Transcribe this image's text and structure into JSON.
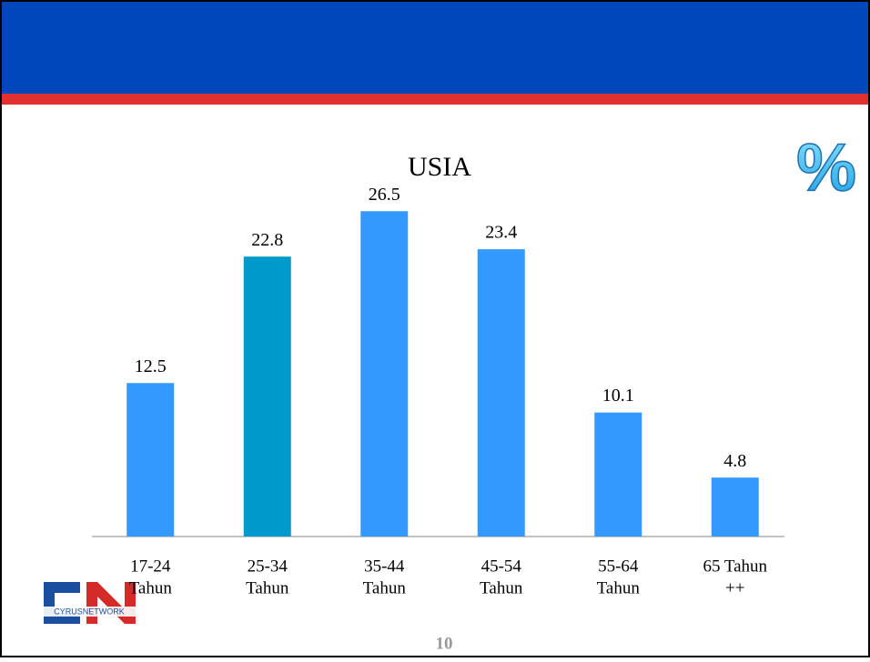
{
  "chart_data": {
    "type": "bar",
    "title": "USIA",
    "categories": [
      [
        "17-24",
        "Tahun"
      ],
      [
        "25-34",
        "Tahun"
      ],
      [
        "35-44",
        "Tahun"
      ],
      [
        "45-54",
        "Tahun"
      ],
      [
        "55-64",
        "Tahun"
      ],
      [
        "65 Tahun",
        "++"
      ]
    ],
    "values": [
      12.5,
      22.8,
      26.5,
      23.4,
      10.1,
      4.8
    ],
    "colors": [
      "#3399ff",
      "#0099cc",
      "#3399ff",
      "#3399ff",
      "#3399ff",
      "#3399ff"
    ],
    "ylim": [
      0,
      30
    ],
    "grid": false
  },
  "corner_symbol": "%",
  "logo_text": "CYRUSNETWORK",
  "page_number": "10"
}
